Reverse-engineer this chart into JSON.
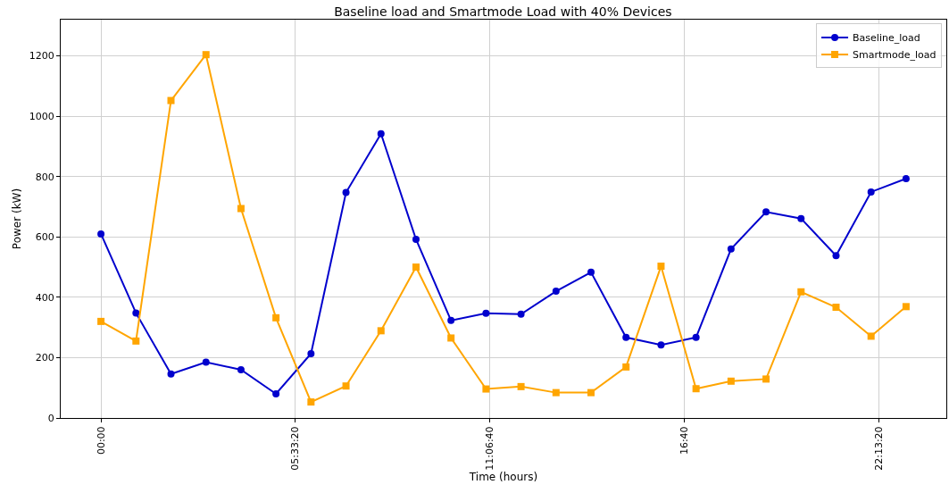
{
  "chart_data": {
    "type": "line",
    "title": "Baseline load and Smartmode Load with 40% Devices",
    "xlabel": "Time (hours)",
    "ylabel": "Power (kW)",
    "x": [
      0,
      1,
      2,
      3,
      4,
      5,
      6,
      7,
      8,
      9,
      10,
      11,
      12,
      13,
      14,
      15,
      16,
      17,
      18,
      19,
      20,
      21,
      22,
      23
    ],
    "series": [
      {
        "name": "Baseline_load",
        "color": "#0000cd",
        "marker": "circle",
        "values": [
          610,
          348,
          146,
          185,
          160,
          80,
          213,
          747,
          942,
          592,
          323,
          347,
          344,
          420,
          483,
          267,
          242,
          267,
          560,
          683,
          661,
          538,
          749,
          793
        ]
      },
      {
        "name": "Smartmode_load",
        "color": "#ffa500",
        "marker": "square",
        "values": [
          320,
          255,
          1052,
          1204,
          694,
          332,
          53,
          106,
          289,
          500,
          265,
          96,
          104,
          84,
          84,
          169,
          503,
          97,
          122,
          129,
          418,
          367,
          271,
          369
        ]
      }
    ],
    "xlim": [
      -1.15,
      24.15
    ],
    "xticks": [
      {
        "value": 0,
        "label": "00:00"
      },
      {
        "value": 5.555556,
        "label": "05:33:20"
      },
      {
        "value": 11.111111,
        "label": "11:06:40"
      },
      {
        "value": 16.666667,
        "label": "16:40"
      },
      {
        "value": 22.222222,
        "label": "22:13:20"
      }
    ],
    "ylim": [
      0,
      1320
    ],
    "yticks": [
      0,
      200,
      400,
      600,
      800,
      1000,
      1200
    ],
    "grid": true,
    "legend": "top right",
    "line_style": "solid"
  }
}
